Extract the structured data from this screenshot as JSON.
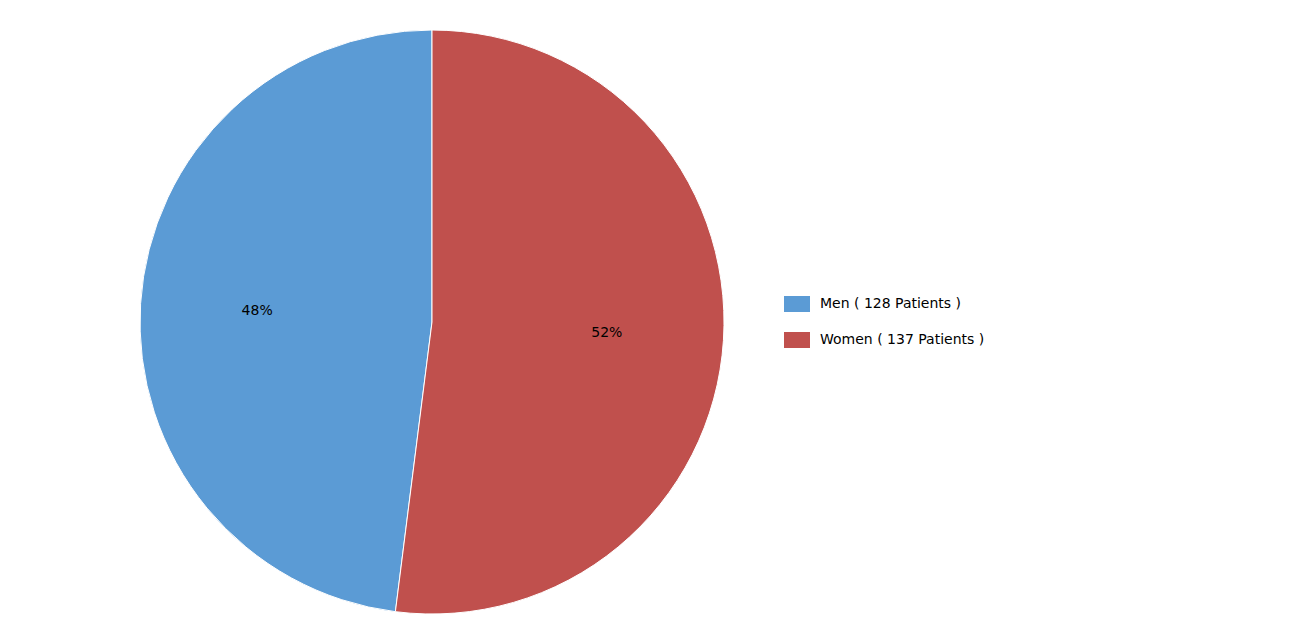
{
  "chart_data": {
    "type": "pie",
    "categories": [
      "Men ( 128 Patients )",
      "Women ( 137 Patients )"
    ],
    "values": [
      48,
      52
    ],
    "value_labels": [
      "48%",
      "52%"
    ],
    "colors": [
      "#5B9BD5",
      "#C0504D"
    ],
    "data_labels": true,
    "legend": "right"
  }
}
